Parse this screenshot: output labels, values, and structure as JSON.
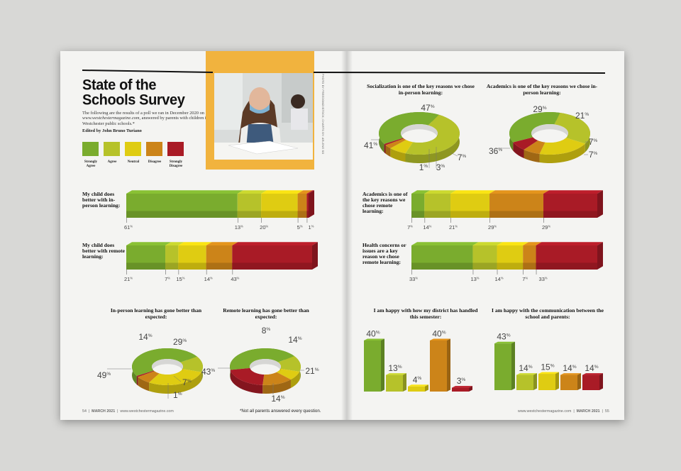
{
  "colors": {
    "strongly_agree": "#7aac2e",
    "agree": "#b6c22a",
    "neutral": "#dfcc12",
    "disagree": "#cc8419",
    "strongly_disagree": "#a91b26"
  },
  "left_page": {
    "title_line1": "State of the",
    "title_line2": "Schools Survey",
    "intro_before": "The following are the results of a poll we ran in December 2020 on ",
    "intro_site": "www.westchestermagazine.com",
    "intro_after": ", answered by parents with children in Westchester public schools.*",
    "editor": "Edited by John Bruno Turiano",
    "photo_credit": "PHOTO BY FREEDOMZ/ISTOCK; CHARTS BY: ARLENE SO",
    "legend": [
      {
        "line1": "Strongly",
        "line2": "Agree",
        "color": "strongly_agree"
      },
      {
        "line1": "Agree",
        "line2": "",
        "color": "agree"
      },
      {
        "line1": "Neutral",
        "line2": "",
        "color": "neutral"
      },
      {
        "line1": "Disagree",
        "line2": "",
        "color": "disagree"
      },
      {
        "line1": "Strongly",
        "line2": "Disagree",
        "color": "strongly_disagree"
      }
    ],
    "footer_page": "54",
    "footer_date": "MARCH 2021",
    "footer_site": "www.westchestermagazine.com",
    "footnote": "*Not all parents answered every question."
  },
  "right_page": {
    "footer_site": "www.westchestermagazine.com",
    "footer_date": "MARCH 2021",
    "footer_page": "55"
  },
  "chart_data": [
    {
      "type": "bar",
      "orientation": "stacked-horizontal",
      "title": "My child does better with in-person learning:",
      "categories": [
        "Strongly Agree",
        "Agree",
        "Neutral",
        "Disagree",
        "Strongly Disagree"
      ],
      "values": [
        61,
        13,
        20,
        5,
        1
      ]
    },
    {
      "type": "bar",
      "orientation": "stacked-horizontal",
      "title": "My child does better with remote learning:",
      "categories": [
        "Strongly Agree",
        "Agree",
        "Neutral",
        "Disagree",
        "Strongly Disagree"
      ],
      "values": [
        21,
        7,
        15,
        14,
        43
      ]
    },
    {
      "type": "pie",
      "style": "3d-donut",
      "title": "In-person learning has gone better than expected:",
      "categories": [
        "Strongly Agree",
        "Agree",
        "Neutral",
        "Disagree",
        "Strongly Disagree"
      ],
      "values": [
        49,
        14,
        29,
        7,
        1
      ]
    },
    {
      "type": "pie",
      "style": "3d-donut",
      "title": "Remote learning has gone better than expected:",
      "categories": [
        "Strongly Agree",
        "Agree",
        "Neutral",
        "Disagree",
        "Strongly Disagree"
      ],
      "values": [
        43,
        14,
        8,
        14,
        21
      ]
    },
    {
      "type": "pie",
      "style": "3d-donut",
      "title": "Socialization is one of the key reasons we chose in-person learning:",
      "categories": [
        "Strongly Agree",
        "Agree",
        "Neutral",
        "Disagree",
        "Strongly Disagree"
      ],
      "values": [
        41,
        47,
        7,
        3,
        1
      ]
    },
    {
      "type": "pie",
      "style": "3d-donut",
      "title": "Academics is one of the key reasons we chose in-person learning:",
      "categories": [
        "Strongly Agree",
        "Agree",
        "Neutral",
        "Disagree",
        "Strongly Disagree"
      ],
      "values": [
        36,
        29,
        21,
        7,
        7
      ]
    },
    {
      "type": "bar",
      "orientation": "stacked-horizontal",
      "title": "Academics is one of the key reasons we chose remote learning:",
      "categories": [
        "Strongly Agree",
        "Agree",
        "Neutral",
        "Disagree",
        "Strongly Disagree"
      ],
      "values": [
        7,
        14,
        21,
        29,
        29
      ]
    },
    {
      "type": "bar",
      "orientation": "stacked-horizontal",
      "title": "Health concerns or issues are a key reason we chose remote learning:",
      "categories": [
        "Strongly Agree",
        "Agree",
        "Neutral",
        "Disagree",
        "Strongly Disagree"
      ],
      "values": [
        33,
        13,
        14,
        7,
        33
      ]
    },
    {
      "type": "bar",
      "style": "3d-columns",
      "title": "I am happy with how my district has handled this semester:",
      "categories": [
        "Strongly Agree",
        "Agree",
        "Neutral",
        "Disagree",
        "Strongly Disagree"
      ],
      "values": [
        40,
        13,
        4,
        40,
        3
      ]
    },
    {
      "type": "bar",
      "style": "3d-columns",
      "title": "I am happy with the communication between the school and parents:",
      "categories": [
        "Strongly Agree",
        "Agree",
        "Neutral",
        "Disagree",
        "Strongly Disagree"
      ],
      "values": [
        43,
        14,
        15,
        14,
        14
      ]
    }
  ]
}
